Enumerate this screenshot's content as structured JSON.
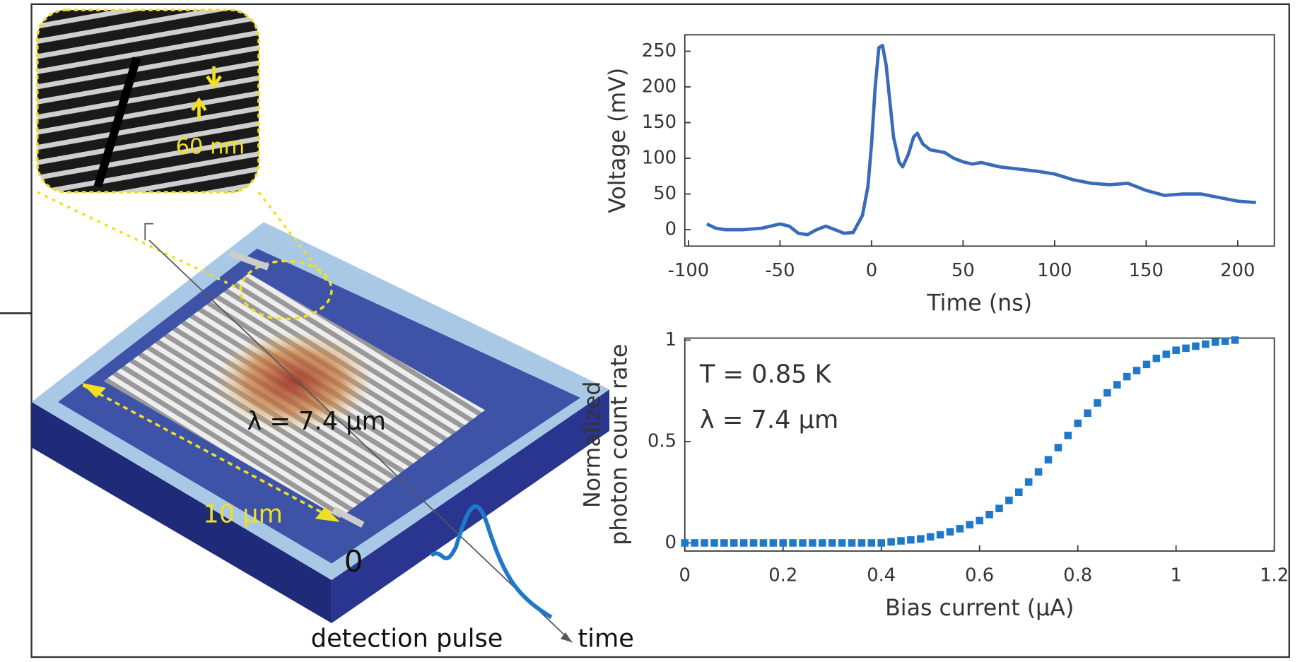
{
  "chart_data": [
    {
      "type": "line",
      "xlabel": "Time (ns)",
      "ylabel": "Voltage (mV)",
      "x": [
        -90,
        -85,
        -80,
        -70,
        -60,
        -50,
        -45,
        -40,
        -35,
        -30,
        -25,
        -20,
        -15,
        -10,
        -5,
        -2,
        0,
        2,
        4,
        6,
        8,
        10,
        12,
        15,
        17,
        20,
        23,
        25,
        28,
        32,
        40,
        45,
        50,
        55,
        60,
        70,
        80,
        90,
        100,
        110,
        120,
        130,
        140,
        150,
        160,
        170,
        180,
        190,
        200,
        210
      ],
      "series": [
        {
          "color": "#3a6bb8",
          "values": [
            8,
            2,
            0,
            0,
            2,
            8,
            5,
            -5,
            -7,
            0,
            5,
            0,
            -5,
            -4,
            20,
            60,
            120,
            200,
            255,
            258,
            230,
            180,
            130,
            95,
            88,
            105,
            130,
            135,
            120,
            112,
            108,
            100,
            95,
            92,
            94,
            88,
            85,
            82,
            78,
            70,
            65,
            63,
            65,
            55,
            48,
            50,
            50,
            45,
            40,
            38
          ]
        }
      ],
      "xlim": [
        -102,
        220
      ],
      "xticks": [
        -100,
        -50,
        0,
        50,
        100,
        150,
        200
      ],
      "ylim": [
        -23,
        273
      ],
      "yticks": [
        0,
        50,
        100,
        150,
        200,
        250
      ]
    },
    {
      "type": "scatter",
      "xlabel": "Bias current (μA)",
      "ylabel": [
        "Normalized",
        "photon count rate"
      ],
      "annotations": [
        "T = 0.85 K",
        "λ = 7.4 μm"
      ],
      "x": [
        0,
        0.02,
        0.04,
        0.06,
        0.08,
        0.1,
        0.12,
        0.14,
        0.16,
        0.18,
        0.2,
        0.22,
        0.24,
        0.26,
        0.28,
        0.3,
        0.32,
        0.34,
        0.36,
        0.38,
        0.4,
        0.42,
        0.44,
        0.46,
        0.48,
        0.5,
        0.52,
        0.54,
        0.56,
        0.58,
        0.6,
        0.62,
        0.64,
        0.66,
        0.68,
        0.7,
        0.72,
        0.74,
        0.76,
        0.78,
        0.8,
        0.82,
        0.84,
        0.86,
        0.88,
        0.9,
        0.92,
        0.94,
        0.96,
        0.98,
        1,
        1.02,
        1.04,
        1.06,
        1.08,
        1.1,
        1.12
      ],
      "series": [
        {
          "color": "#1f78c8",
          "values": [
            0,
            0,
            0,
            0,
            0,
            0,
            0,
            0,
            0,
            0,
            0,
            0,
            0,
            0,
            0,
            0,
            0,
            0,
            0,
            0,
            0,
            0.005,
            0.01,
            0.015,
            0.02,
            0.03,
            0.04,
            0.055,
            0.07,
            0.09,
            0.11,
            0.14,
            0.17,
            0.21,
            0.25,
            0.3,
            0.35,
            0.41,
            0.47,
            0.53,
            0.59,
            0.64,
            0.69,
            0.74,
            0.78,
            0.82,
            0.85,
            0.88,
            0.91,
            0.93,
            0.95,
            0.96,
            0.97,
            0.98,
            0.99,
            0.995,
            1
          ]
        }
      ],
      "xlim": [
        0,
        1.2
      ],
      "xticks": [
        0,
        0.2,
        0.4,
        0.6,
        0.8,
        1,
        1.2
      ],
      "ylim": [
        -0.04,
        1.01
      ],
      "yticks": [
        0,
        0.5,
        1
      ]
    }
  ],
  "diagram": {
    "scale_label": "60 nm",
    "wavelength": "λ = 7.4 µm",
    "width_label": "10 µm",
    "origin": "0",
    "pulse_label": "detection pulse",
    "time_label": "time"
  }
}
